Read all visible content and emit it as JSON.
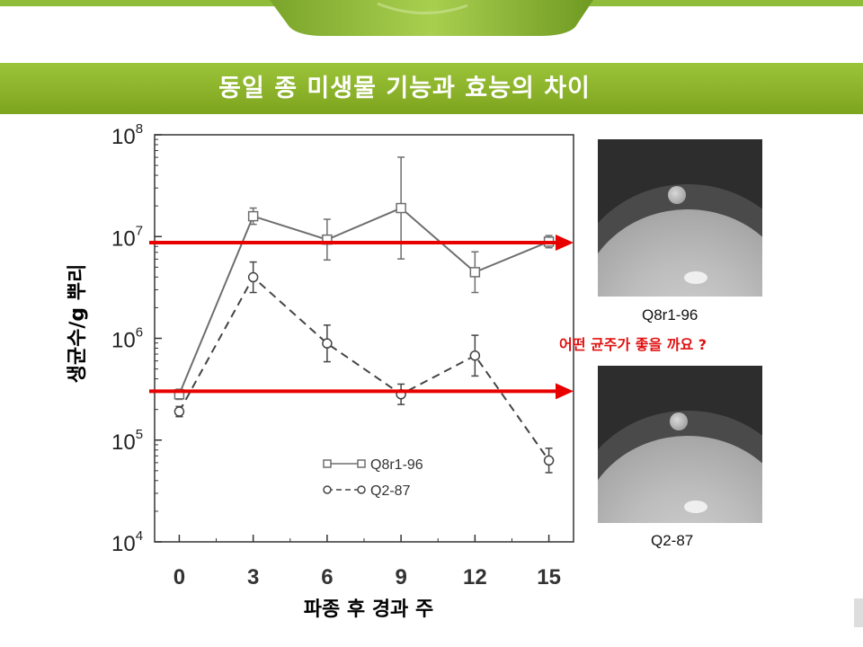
{
  "slide": {
    "title": "동일 종 미생물 기능과 효능의 차이",
    "question": "어떤 균주가 좋을 까요 ?",
    "colors": {
      "title_bar": "#8ab42a",
      "arrow": "#e80000",
      "question": "#e01010"
    }
  },
  "photos": [
    {
      "caption": "Q8r1-96"
    },
    {
      "caption": "Q2-87"
    }
  ],
  "chart_data": {
    "type": "line",
    "xlabel": "파종 후 경과 주",
    "ylabel": "생균수/g 뿌리",
    "x": [
      0,
      3,
      6,
      9,
      12,
      15
    ],
    "xlim": [
      -1,
      16
    ],
    "ylim_log10": [
      4,
      8
    ],
    "yscale": "log",
    "grid": false,
    "legend_position": "bottom-center",
    "ytick_labels": [
      {
        "base": "10",
        "exp": "4"
      },
      {
        "base": "10",
        "exp": "5"
      },
      {
        "base": "10",
        "exp": "6"
      },
      {
        "base": "10",
        "exp": "7"
      },
      {
        "base": "10",
        "exp": "8"
      }
    ],
    "series": [
      {
        "name": "Q8r1-96",
        "marker": "square",
        "line": "solid",
        "color": "#6e6e6e",
        "values_log10": [
          5.45,
          7.2,
          6.97,
          7.28,
          6.65,
          6.95
        ],
        "error_log10": [
          0.05,
          0.08,
          0.2,
          0.5,
          0.2,
          0.06
        ]
      },
      {
        "name": "Q2-87",
        "marker": "circle",
        "line": "dashed",
        "color": "#444444",
        "values_log10": [
          5.28,
          6.6,
          5.95,
          5.45,
          5.83,
          4.8
        ],
        "error_log10": [
          0.05,
          0.15,
          0.18,
          0.1,
          0.2,
          0.12
        ]
      }
    ],
    "reference_lines_log10": [
      6.94,
      5.48
    ]
  }
}
